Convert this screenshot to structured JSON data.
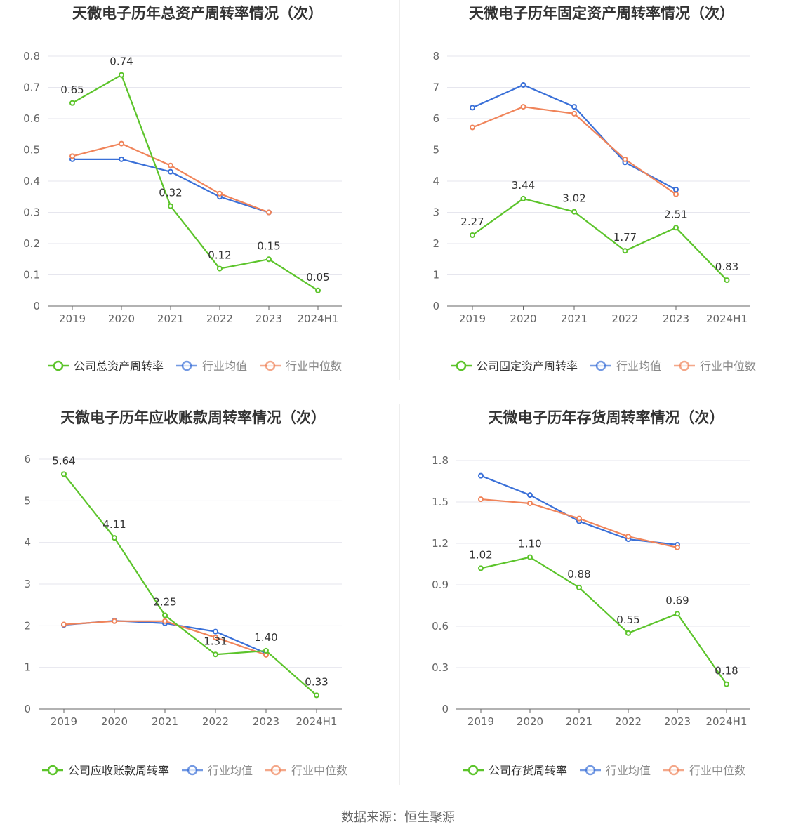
{
  "source_text": "数据来源：恒生聚源",
  "colors": {
    "company": "#5cc42b",
    "avg": "#3a70d8",
    "median": "#f0845a"
  },
  "chart_data": [
    {
      "type": "line",
      "title": "天微电子历年总资产周转率情况（次）",
      "categories": [
        "2019",
        "2020",
        "2021",
        "2022",
        "2023",
        "2024H1"
      ],
      "ylim": [
        0,
        0.8
      ],
      "yticks": [
        "0",
        "0.1",
        "0.2",
        "0.3",
        "0.4",
        "0.5",
        "0.6",
        "0.7",
        "0.8"
      ],
      "ytick_values": [
        0,
        0.1,
        0.2,
        0.3,
        0.4,
        0.5,
        0.6,
        0.7,
        0.8
      ],
      "series": [
        {
          "name": "公司总资产周转率",
          "values": [
            0.65,
            0.74,
            0.32,
            0.12,
            0.15,
            0.05
          ],
          "labels": [
            "0.65",
            "0.74",
            "0.32",
            "0.12",
            "0.15",
            "0.05"
          ]
        },
        {
          "name": "行业均值",
          "values": [
            0.47,
            0.47,
            0.43,
            0.35,
            0.3,
            null
          ]
        },
        {
          "name": "行业中位数",
          "values": [
            0.48,
            0.52,
            0.45,
            0.36,
            0.3,
            null
          ]
        }
      ]
    },
    {
      "type": "line",
      "title": "天微电子历年固定资产周转率情况（次）",
      "categories": [
        "2019",
        "2020",
        "2021",
        "2022",
        "2023",
        "2024H1"
      ],
      "ylim": [
        0,
        8
      ],
      "yticks": [
        "0",
        "1",
        "2",
        "3",
        "4",
        "5",
        "6",
        "7",
        "8"
      ],
      "ytick_values": [
        0,
        1,
        2,
        3,
        4,
        5,
        6,
        7,
        8
      ],
      "series": [
        {
          "name": "公司固定资产周转率",
          "values": [
            2.27,
            3.44,
            3.02,
            1.77,
            2.51,
            0.83
          ],
          "labels": [
            "2.27",
            "3.44",
            "3.02",
            "1.77",
            "2.51",
            "0.83"
          ]
        },
        {
          "name": "行业均值",
          "values": [
            6.35,
            7.08,
            6.38,
            4.6,
            3.73,
            null
          ]
        },
        {
          "name": "行业中位数",
          "values": [
            5.72,
            6.38,
            6.16,
            4.7,
            3.58,
            null
          ]
        }
      ]
    },
    {
      "type": "line",
      "title": "天微电子历年应收账款周转率情况（次）",
      "categories": [
        "2019",
        "2020",
        "2021",
        "2022",
        "2023",
        "2024H1"
      ],
      "ylim": [
        0,
        6
      ],
      "yticks": [
        "0",
        "1",
        "2",
        "3",
        "4",
        "5",
        "6"
      ],
      "ytick_values": [
        0,
        1,
        2,
        3,
        4,
        5,
        6
      ],
      "series": [
        {
          "name": "公司应收账款周转率",
          "values": [
            5.64,
            4.11,
            2.25,
            1.31,
            1.4,
            0.33
          ],
          "labels": [
            "5.64",
            "4.11",
            "2.25",
            "1.31",
            "1.40",
            "0.33"
          ]
        },
        {
          "name": "行业均值",
          "values": [
            2.02,
            2.12,
            2.06,
            1.86,
            1.34,
            null
          ]
        },
        {
          "name": "行业中位数",
          "values": [
            2.03,
            2.11,
            2.11,
            1.72,
            1.3,
            null
          ]
        }
      ]
    },
    {
      "type": "line",
      "title": "天微电子历年存货周转率情况（次）",
      "categories": [
        "2019",
        "2020",
        "2021",
        "2022",
        "2023",
        "2024H1"
      ],
      "ylim": [
        0,
        1.8
      ],
      "yticks": [
        "0",
        "0.3",
        "0.6",
        "0.9",
        "1.2",
        "1.5",
        "1.8"
      ],
      "ytick_values": [
        0,
        0.3,
        0.6,
        0.9,
        1.2,
        1.5,
        1.8
      ],
      "series": [
        {
          "name": "公司存货周转率",
          "values": [
            1.02,
            1.1,
            0.88,
            0.55,
            0.69,
            0.18
          ],
          "labels": [
            "1.02",
            "1.10",
            "0.88",
            "0.55",
            "0.69",
            "0.18"
          ]
        },
        {
          "name": "行业均值",
          "values": [
            1.69,
            1.55,
            1.36,
            1.23,
            1.19,
            null
          ]
        },
        {
          "name": "行业中位数",
          "values": [
            1.52,
            1.49,
            1.38,
            1.25,
            1.17,
            null
          ]
        }
      ]
    }
  ]
}
